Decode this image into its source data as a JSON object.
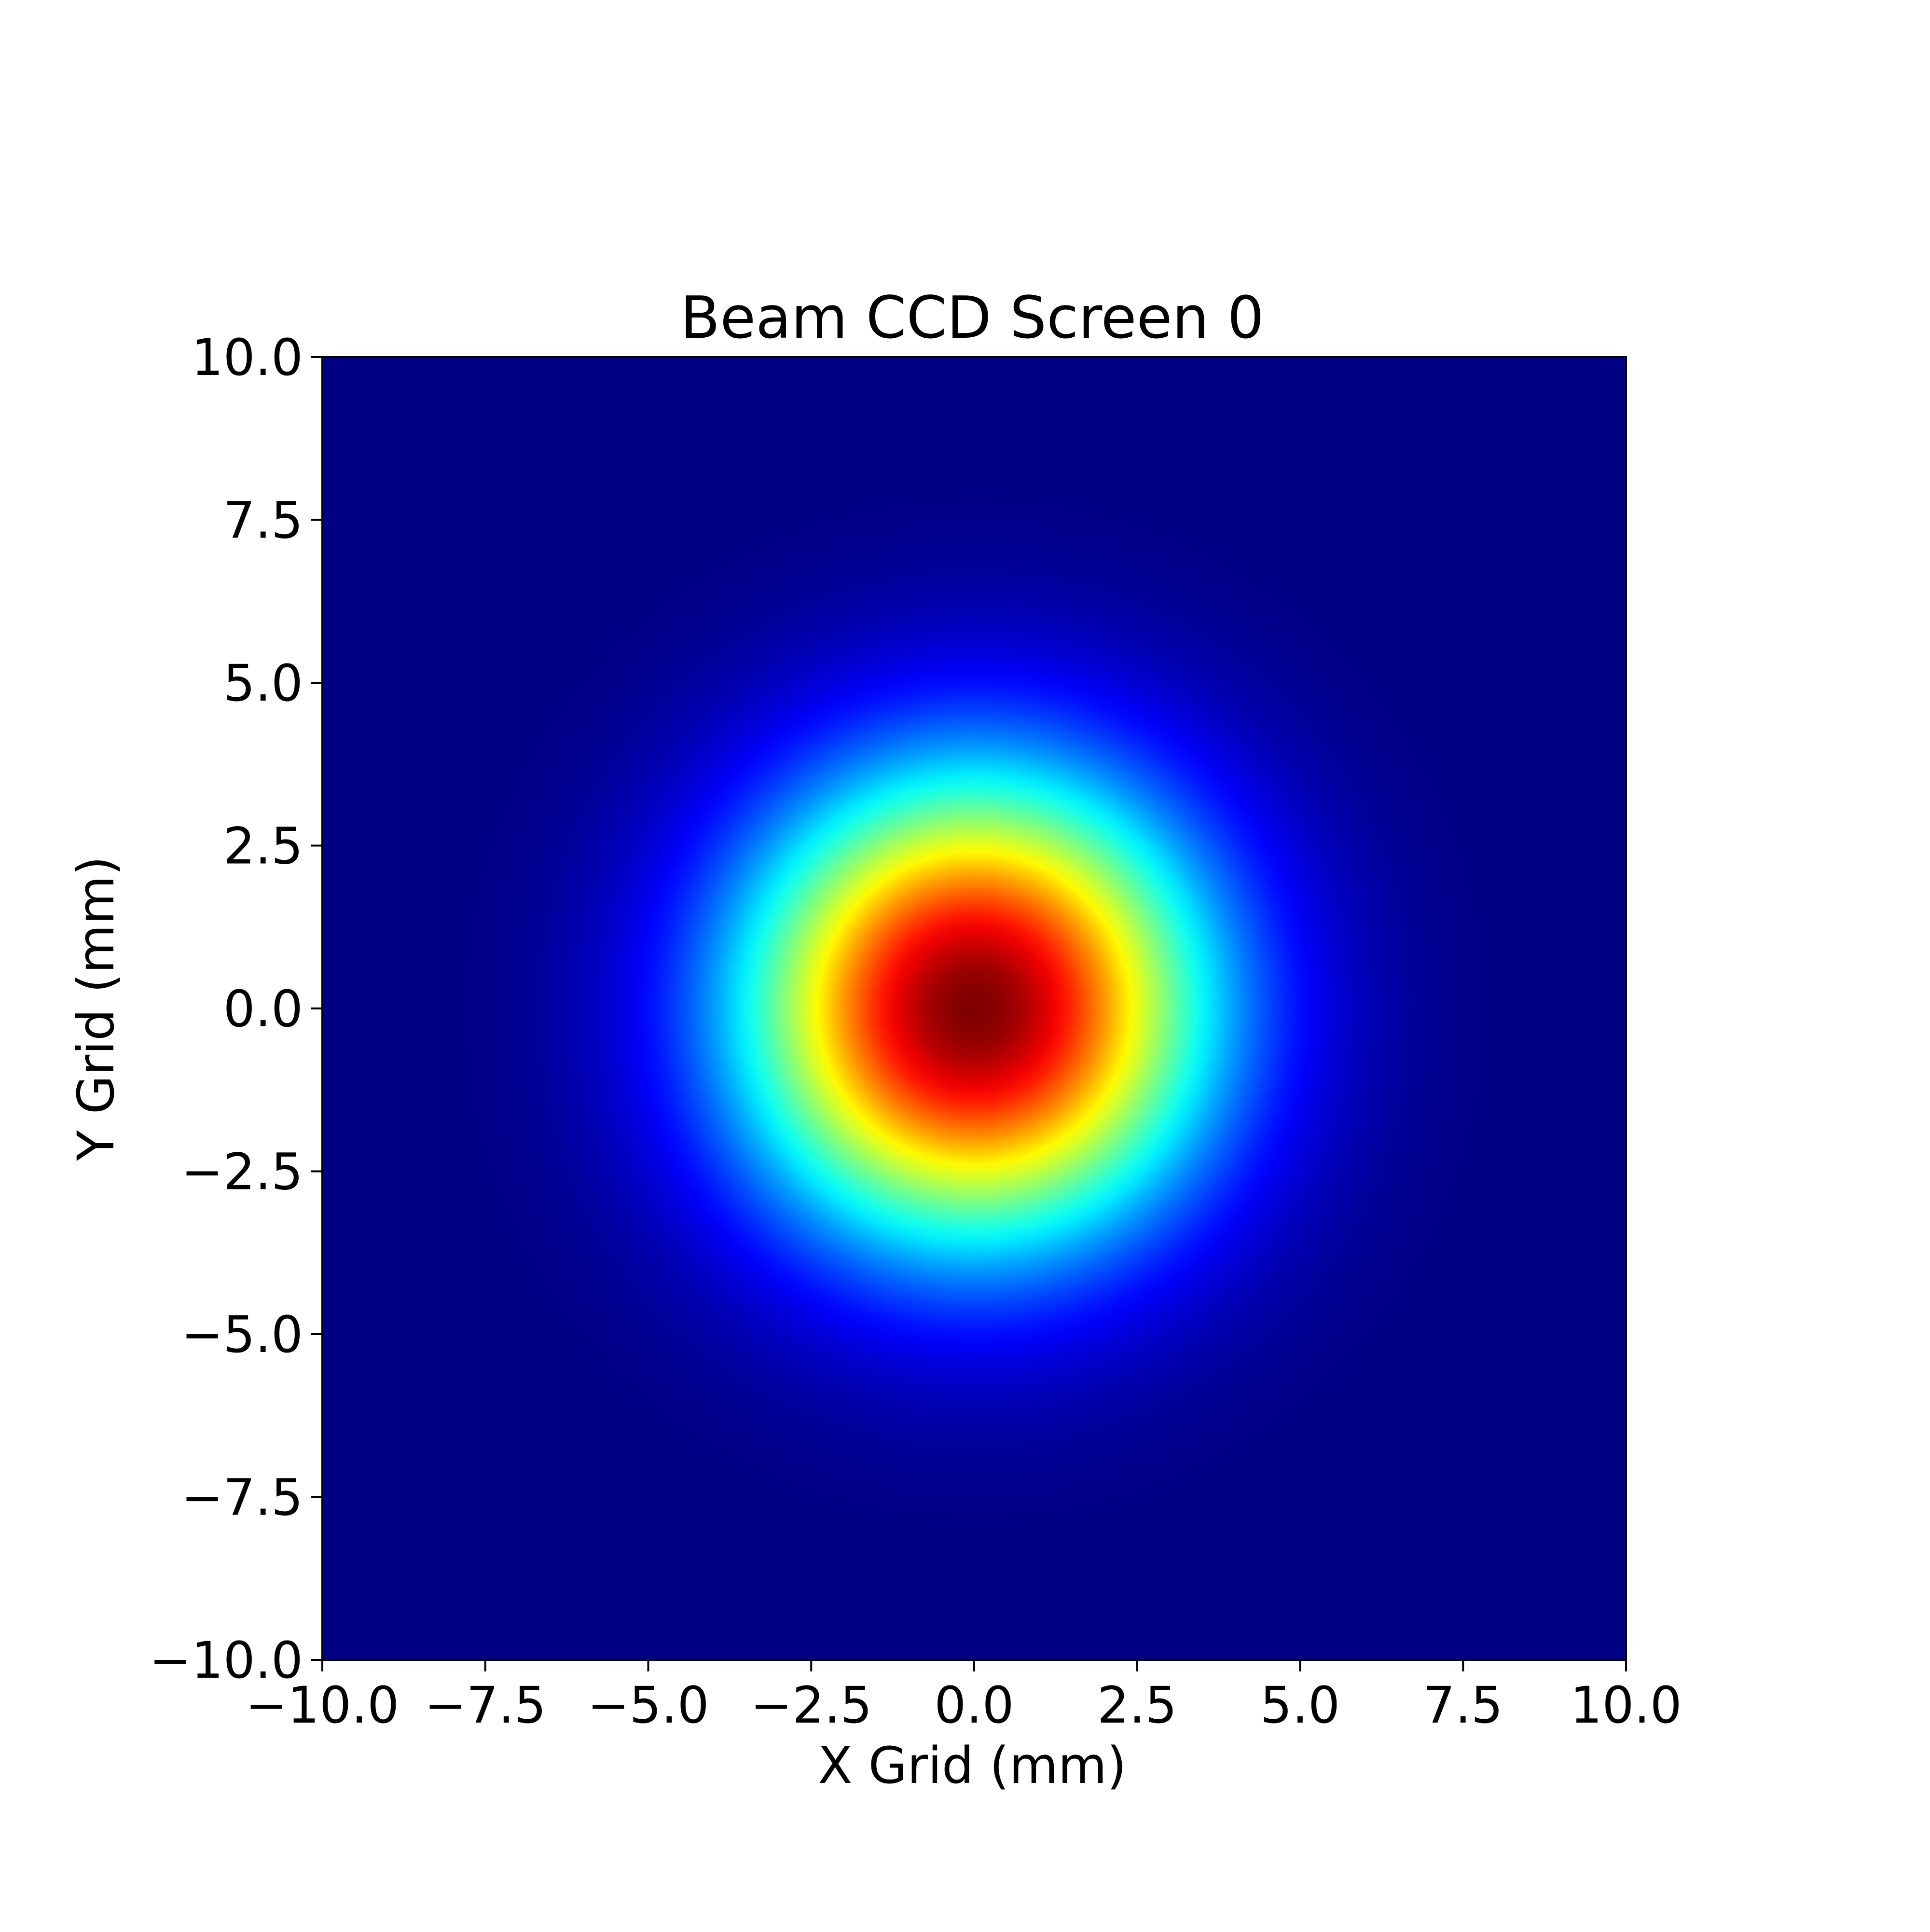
{
  "chart_data": {
    "type": "heatmap",
    "title": "Beam CCD Screen 0",
    "xlabel": "X Grid (mm)",
    "ylabel": "Y Grid (mm)",
    "xlim": [
      -10.0,
      10.0
    ],
    "ylim": [
      -10.0,
      10.0
    ],
    "x_ticks": [
      -10.0,
      -7.5,
      -5.0,
      -2.5,
      0.0,
      2.5,
      5.0,
      7.5,
      10.0
    ],
    "y_ticks": [
      -10.0,
      -7.5,
      -5.0,
      -2.5,
      0.0,
      2.5,
      5.0,
      7.5,
      10.0
    ],
    "x_tick_labels": [
      "−10.0",
      "−7.5",
      "−5.0",
      "−2.5",
      "0.0",
      "2.5",
      "5.0",
      "7.5",
      "10.0"
    ],
    "y_tick_labels": [
      "−10.0",
      "−7.5",
      "−5.0",
      "−2.5",
      "0.0",
      "2.5",
      "5.0",
      "7.5",
      "10.0"
    ],
    "colormap": "jet",
    "grid": false,
    "beam": {
      "center_x": 0.0,
      "center_y": 0.0,
      "sigma_x": 2.5,
      "sigma_y": 2.5
    }
  },
  "colors": {
    "jet": [
      "#00007f",
      "#0000ff",
      "#007fff",
      "#00ffff",
      "#7fff7f",
      "#ffff00",
      "#ff7f00",
      "#ff0000",
      "#7f0000"
    ]
  }
}
